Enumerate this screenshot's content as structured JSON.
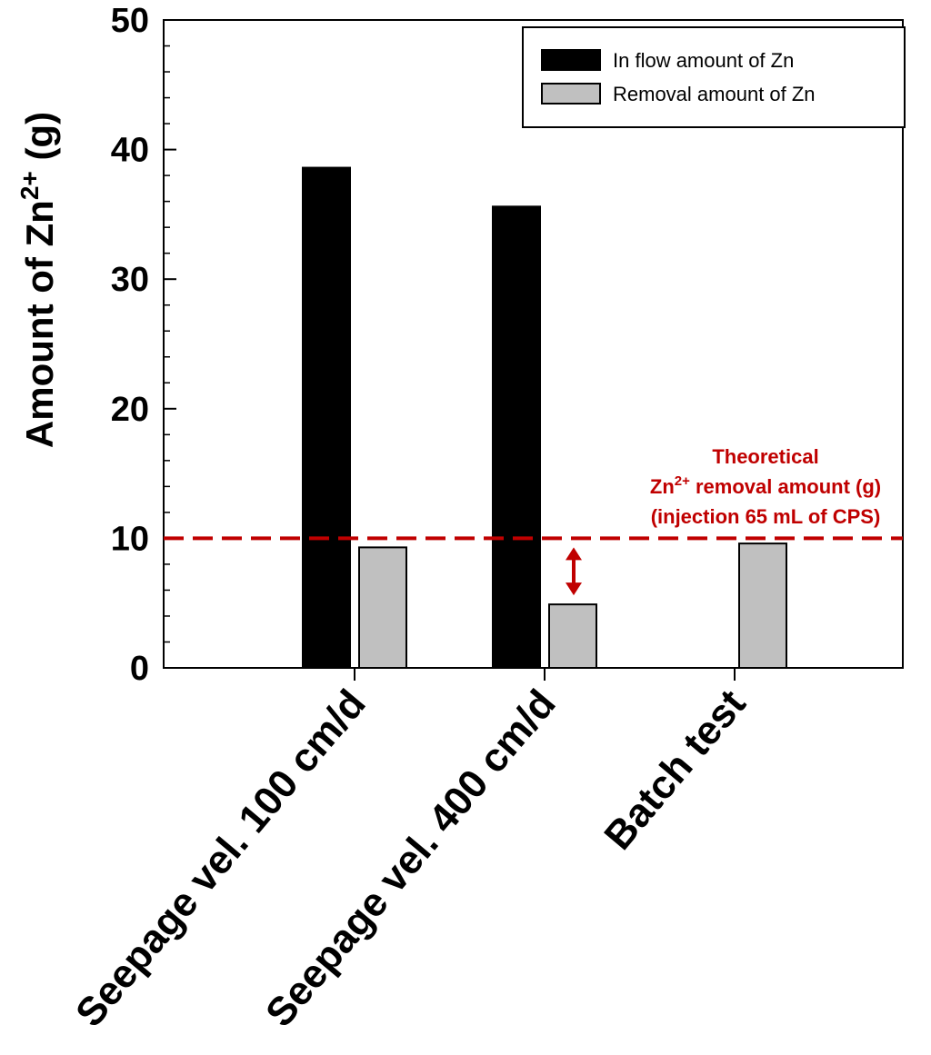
{
  "chart_data": {
    "type": "bar",
    "categories": [
      "Seepage vel. 100 cm/d",
      "Seepage vel. 400 cm/d",
      "Batch test"
    ],
    "series": [
      {
        "name": "In flow amount of Zn",
        "values": [
          38.6,
          35.6,
          null
        ],
        "color": "#000000"
      },
      {
        "name": "Removal amount of Zn",
        "values": [
          9.3,
          4.9,
          9.6
        ],
        "color": "#c0c0c0"
      }
    ],
    "ylabel_main": "Amount of Zn",
    "ylabel_sup": "2+",
    "ylabel_unit": " (g)",
    "ylim": [
      0,
      50
    ],
    "yticks": [
      "0",
      "10",
      "20",
      "30",
      "40",
      "50"
    ],
    "reference_line": {
      "value": 10,
      "color": "#c00000",
      "style": "dashed"
    },
    "annotation": {
      "line1": "Theoretical",
      "line2_main": "Zn",
      "line2_sup": "2+",
      "line2_rest": " removal amount (g)",
      "line3": "(injection 65 mL of CPS)",
      "color": "#c00000"
    },
    "arrow": {
      "category": "Seepage vel. 400 cm/d",
      "from": 4.9,
      "to": 10,
      "color": "#c00000"
    },
    "legend_position": "top-right",
    "grid": false
  }
}
